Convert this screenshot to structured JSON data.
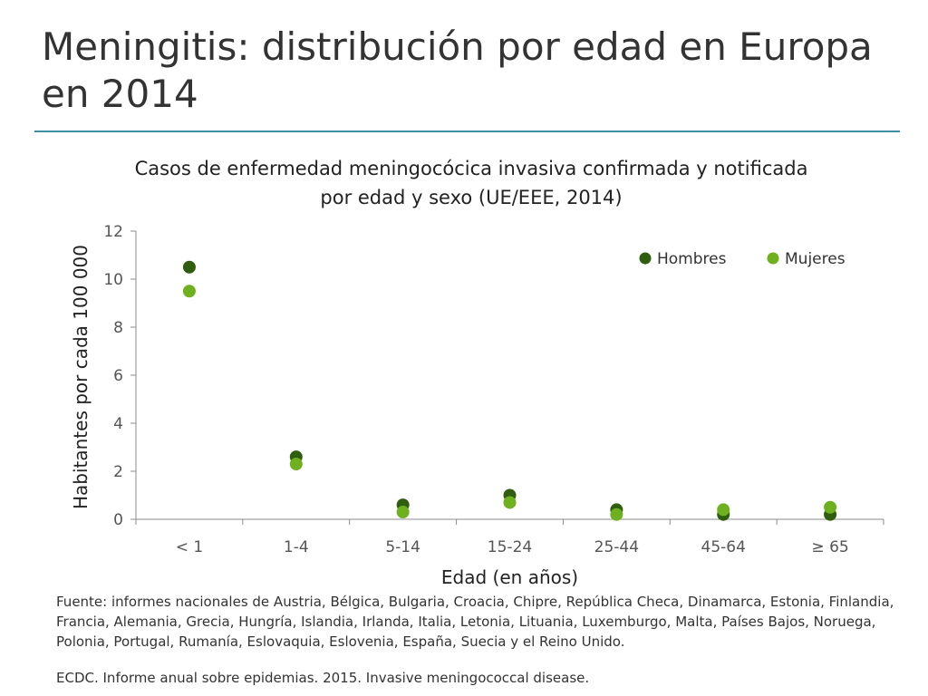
{
  "slide": {
    "title": "Meningitis: distribución por edad en Europa en 2014",
    "rule_color": "#3f8ea5"
  },
  "footnote": {
    "source": "Fuente: informes nacionales de Austria, Bélgica, Bulgaria, Croacia, Chipre, República Checa, Dinamarca, Estonia, Finlandia, Francia, Alemania, Grecia, Hungría, Islandia, Irlanda, Italia, Letonia, Lituania, Luxemburgo, Malta, Países Bajos, Noruega, Polonia, Portugal, Rumanía, Eslovaquia, Eslovenia, España, Suecia y el Reino Unido.",
    "reference": "ECDC. Informe anual sobre epidemias. 2015. Invasive meningococcal disease."
  },
  "chart_data": {
    "type": "scatter",
    "title_lines": [
      "Casos de enfermedad meningocócica invasiva confirmada y notificada",
      "por edad y sexo (UE/EEE, 2014)"
    ],
    "xlabel": "Edad (en años)",
    "ylabel": "Habitantes por cada 100 000",
    "categories": [
      "< 1",
      "1-4",
      "5-14",
      "15-24",
      "25-44",
      "45-64",
      "≥ 65"
    ],
    "ylim": [
      0,
      12
    ],
    "yticks": [
      0,
      2,
      4,
      6,
      8,
      10,
      12
    ],
    "grid": false,
    "legend_position": "top-right",
    "series": [
      {
        "name": "Hombres",
        "color": "#2e5e0e",
        "values": [
          10.5,
          2.6,
          0.6,
          1.0,
          0.4,
          0.2,
          0.2
        ]
      },
      {
        "name": "Mujeres",
        "color": "#6fb01f",
        "values": [
          9.5,
          2.3,
          0.3,
          0.7,
          0.2,
          0.4,
          0.5
        ]
      }
    ]
  }
}
